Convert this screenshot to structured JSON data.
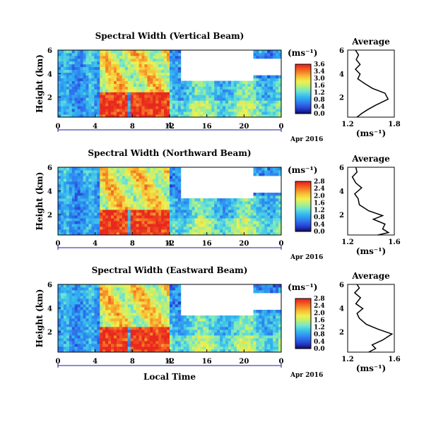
{
  "chart_data": [
    {
      "type": "heatmap",
      "title": "Spectral Width (Vertical Beam)",
      "ylabel": "Height (km)",
      "y_ticks": [
        "6",
        "4",
        "2"
      ],
      "xlim": [
        0,
        24
      ],
      "x_ticks": [
        "0",
        "4",
        "8",
        "12",
        "16",
        "20",
        "0"
      ],
      "date_tick": "4",
      "date_label": "Apr 2016",
      "colorbar": {
        "unit": "(ms⁻¹)",
        "ticks": [
          "3.6",
          "3.4",
          "3.0",
          "1.6",
          "1.2",
          "0.8",
          "0.4",
          "0.0"
        ]
      },
      "average": {
        "title": "Average",
        "xlabel": "(ms⁻¹)",
        "x_ticks": [
          "1.2",
          "1.8"
        ],
        "xlim": [
          1.2,
          1.8
        ],
        "y_ticks": [
          "6",
          "4",
          "2"
        ],
        "ylim": [
          0.4,
          6
        ],
        "profile": [
          [
            1.32,
            0.4
          ],
          [
            1.38,
            0.7
          ],
          [
            1.45,
            1.0
          ],
          [
            1.56,
            1.4
          ],
          [
            1.72,
            1.9
          ],
          [
            1.68,
            2.4
          ],
          [
            1.52,
            2.8
          ],
          [
            1.42,
            3.2
          ],
          [
            1.33,
            3.6
          ],
          [
            1.36,
            4.0
          ],
          [
            1.3,
            4.4
          ],
          [
            1.36,
            4.8
          ],
          [
            1.31,
            5.2
          ],
          [
            1.34,
            5.6
          ],
          [
            1.3,
            6.0
          ]
        ]
      }
    },
    {
      "type": "heatmap",
      "title": "Spectral Width (Northward Beam)",
      "ylabel": "Height (km)",
      "y_ticks": [
        "6",
        "4",
        "2"
      ],
      "xlim": [
        0,
        24
      ],
      "x_ticks": [
        "0",
        "4",
        "8",
        "12",
        "16",
        "20",
        "0"
      ],
      "date_tick": "4",
      "date_label": "Apr 2016",
      "colorbar": {
        "unit": "(ms⁻¹)",
        "ticks": [
          "2.8",
          "2.4",
          "2.0",
          "1.6",
          "1.2",
          "0.8",
          "0.4",
          "0.0"
        ]
      },
      "average": {
        "title": "Average",
        "xlabel": "(ms⁻¹)",
        "x_ticks": [
          "1.2",
          "1.6"
        ],
        "xlim": [
          1.2,
          1.6
        ],
        "y_ticks": [
          "6",
          "4",
          "2"
        ],
        "ylim": [
          0.4,
          6
        ],
        "profile": [
          [
            1.46,
            0.4
          ],
          [
            1.55,
            0.6
          ],
          [
            1.5,
            0.9
          ],
          [
            1.52,
            1.3
          ],
          [
            1.42,
            1.7
          ],
          [
            1.5,
            2.0
          ],
          [
            1.38,
            2.4
          ],
          [
            1.3,
            2.9
          ],
          [
            1.29,
            3.4
          ],
          [
            1.26,
            3.8
          ],
          [
            1.32,
            4.3
          ],
          [
            1.27,
            4.7
          ],
          [
            1.24,
            5.2
          ],
          [
            1.28,
            5.6
          ],
          [
            1.27,
            6.0
          ]
        ]
      }
    },
    {
      "type": "heatmap",
      "title": "Spectral Width (Eastward Beam)",
      "ylabel": "Height (km)",
      "y_ticks": [
        "6",
        "4",
        "2"
      ],
      "xlim": [
        0,
        24
      ],
      "x_ticks": [
        "0",
        "4",
        "8",
        "12",
        "16",
        "20",
        "0"
      ],
      "date_tick": "4",
      "date_label": "Apr 2016",
      "xlabel": "Local Time",
      "colorbar": {
        "unit": "(ms⁻¹)",
        "ticks": [
          "2.8",
          "2.4",
          "2.0",
          "1.6",
          "1.2",
          "0.8",
          "0.4",
          "0.0"
        ]
      },
      "average": {
        "title": "Average",
        "xlabel": "(ms⁻¹)",
        "x_ticks": [
          "1.2",
          "1.6"
        ],
        "xlim": [
          1.2,
          1.6
        ],
        "y_ticks": [
          "6",
          "4",
          "2"
        ],
        "ylim": [
          0.4,
          6
        ],
        "profile": [
          [
            1.38,
            0.4
          ],
          [
            1.44,
            0.7
          ],
          [
            1.41,
            1.0
          ],
          [
            1.5,
            1.4
          ],
          [
            1.58,
            1.9
          ],
          [
            1.46,
            2.3
          ],
          [
            1.36,
            2.7
          ],
          [
            1.3,
            3.2
          ],
          [
            1.28,
            3.6
          ],
          [
            1.33,
            4.0
          ],
          [
            1.27,
            4.4
          ],
          [
            1.31,
            4.9
          ],
          [
            1.26,
            5.3
          ],
          [
            1.3,
            5.7
          ],
          [
            1.28,
            6.0
          ]
        ]
      }
    }
  ]
}
